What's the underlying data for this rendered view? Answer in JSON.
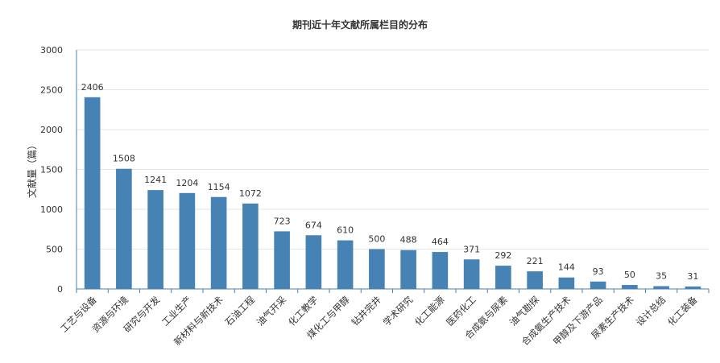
{
  "chart_data": {
    "type": "bar",
    "title": "期刊近十年文献所属栏目的分布",
    "xlabel": "",
    "ylabel": "文献量（篇）",
    "ylim": [
      0,
      3000
    ],
    "yticks": [
      0,
      500,
      1000,
      1500,
      2000,
      2500,
      3000
    ],
    "grid": true,
    "legend": "none",
    "bar_color": "#4682b4",
    "categories": [
      "工艺与设备",
      "资源与环境",
      "研究与开发",
      "工业生产",
      "新材料与新技术",
      "石油工程",
      "油气开采",
      "化工教学",
      "煤化工与甲醇",
      "钻井完井",
      "学术研究",
      "化工能源",
      "医药化工",
      "合成氨与尿素",
      "油气勘探",
      "合成氨生产技术",
      "甲醇及下游产品",
      "尿素生产技术",
      "设计总结",
      "化工装备"
    ],
    "values": [
      2406,
      1508,
      1241,
      1204,
      1154,
      1072,
      723,
      674,
      610,
      500,
      488,
      464,
      371,
      292,
      221,
      144,
      93,
      50,
      35,
      31
    ]
  }
}
